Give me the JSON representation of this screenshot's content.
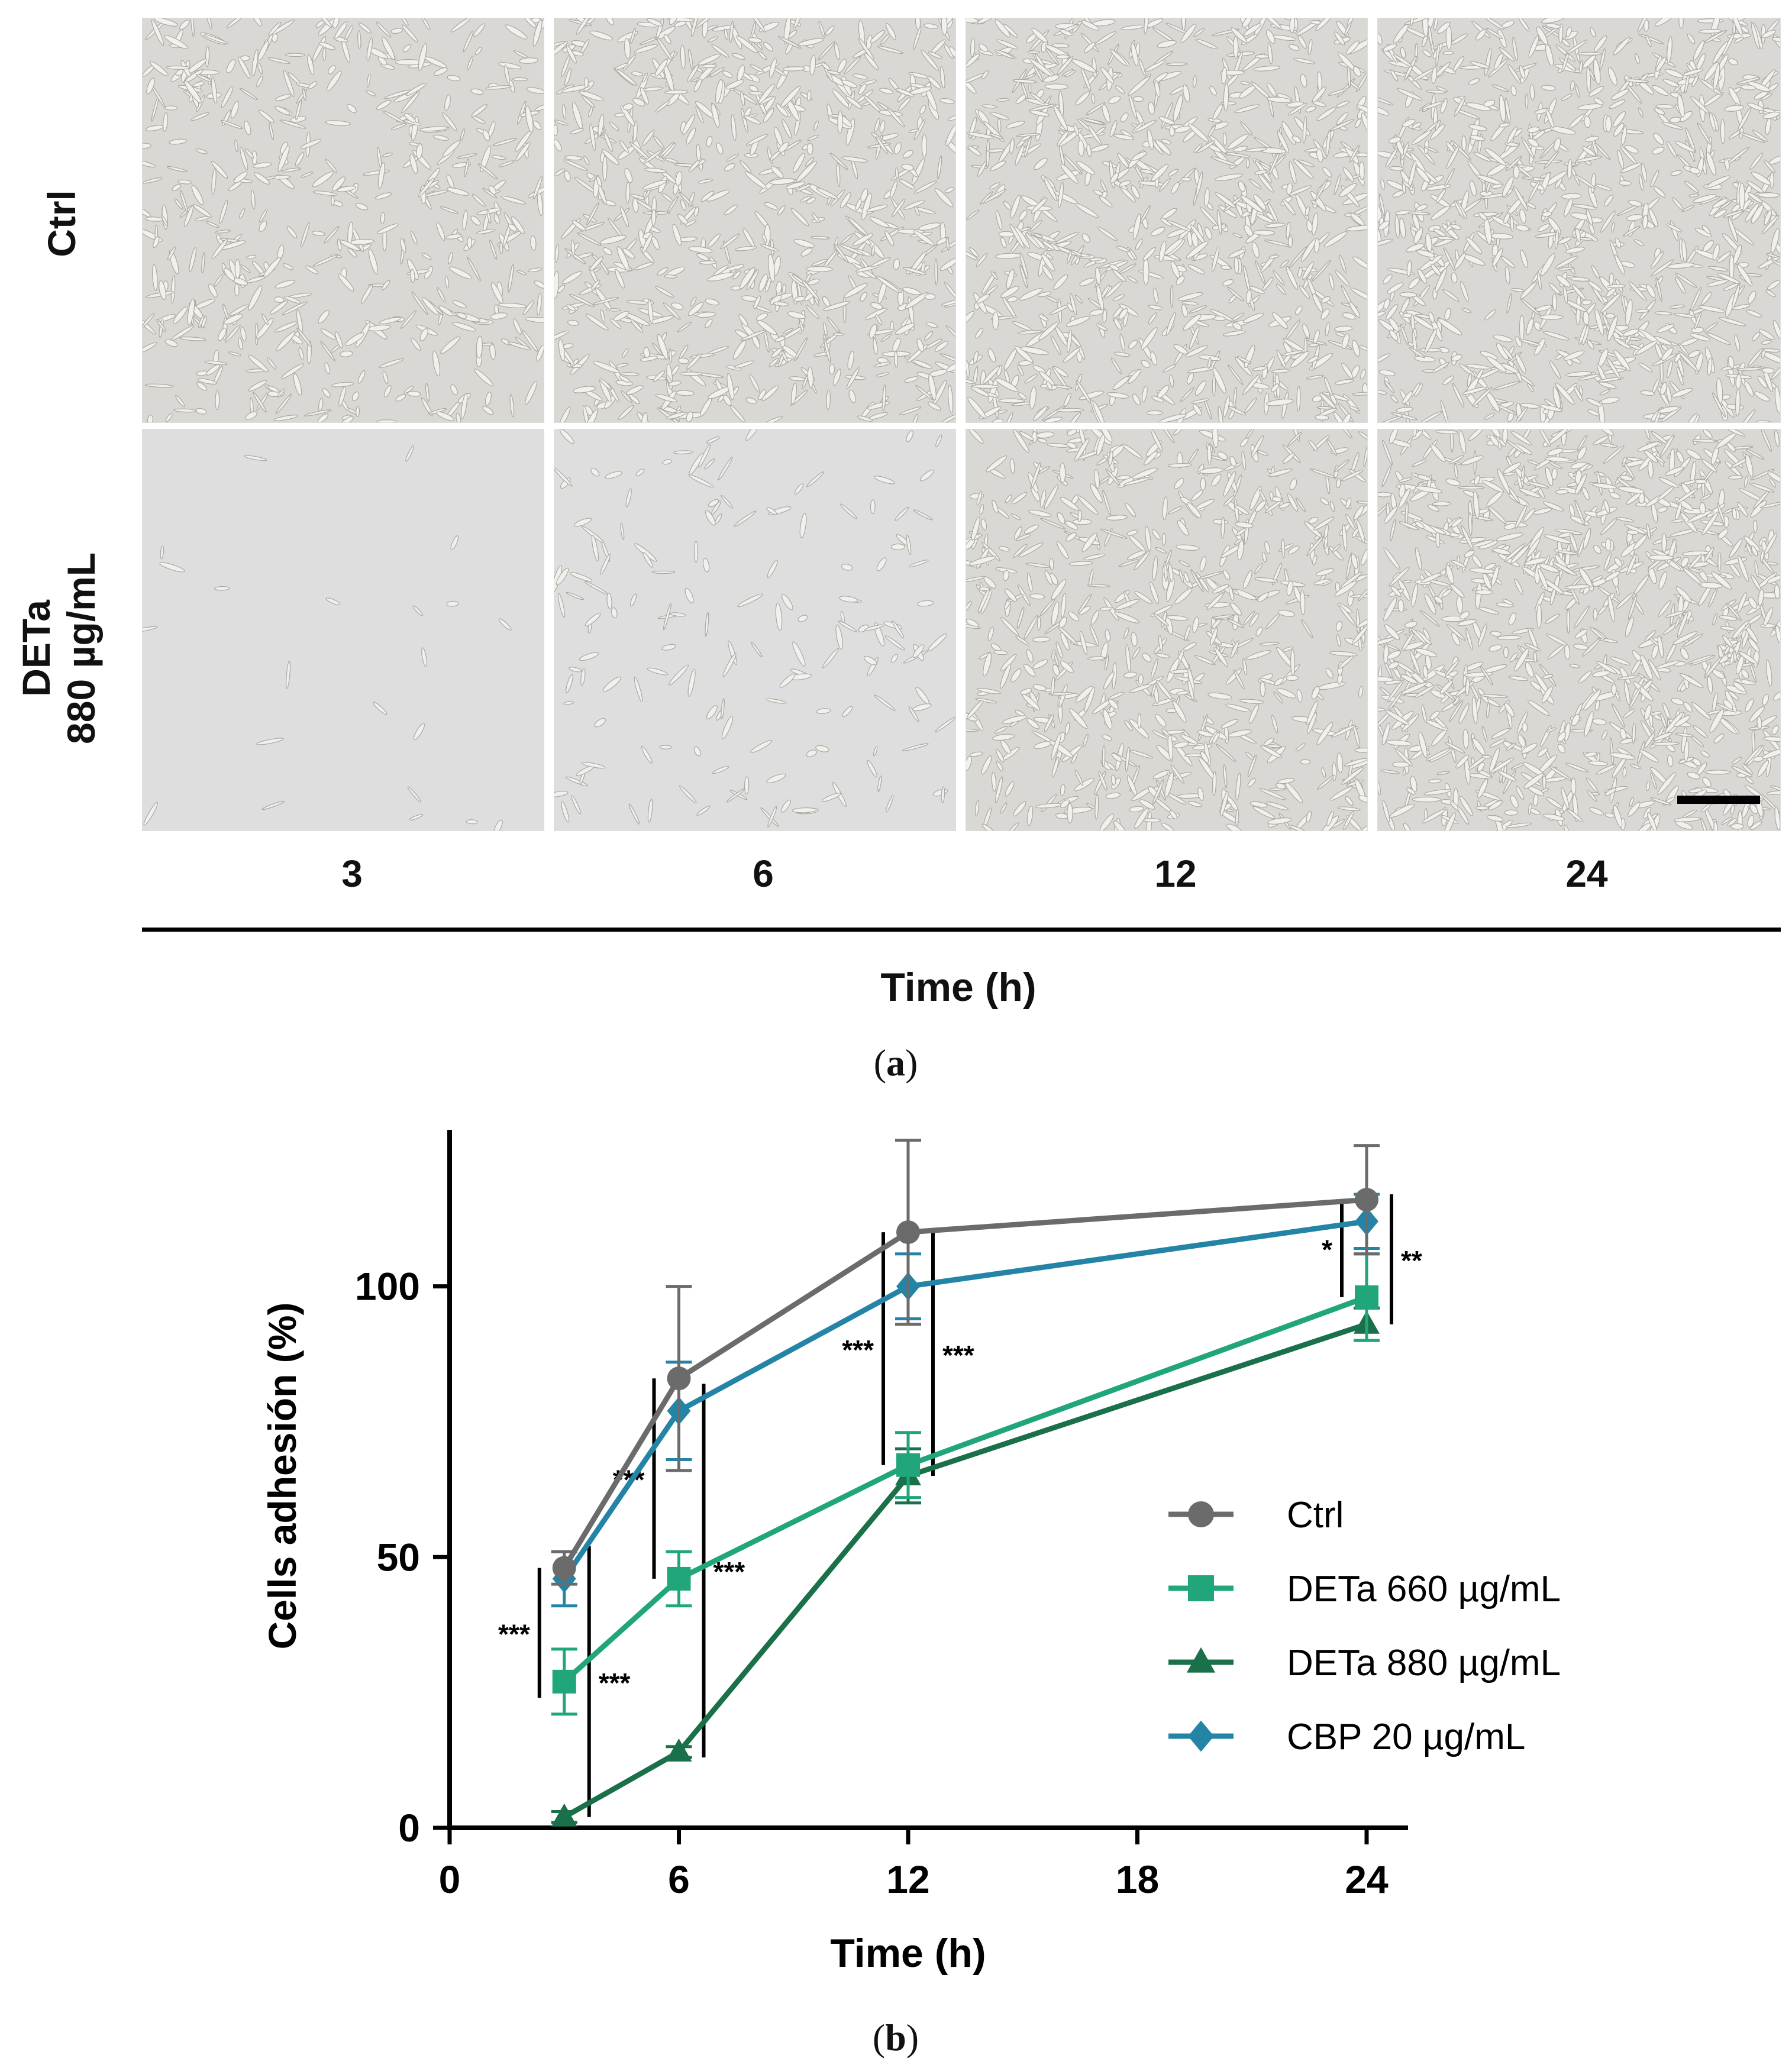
{
  "panel_a": {
    "label": "a",
    "rows": [
      {
        "line1": "Ctrl",
        "line2": ""
      },
      {
        "line1": "DETa",
        "line2": "880 µg/mL"
      }
    ],
    "columns": [
      "3",
      "6",
      "12",
      "24"
    ],
    "axis_title": "Time (h)"
  },
  "panel_b": {
    "label": "b"
  },
  "chart_data": {
    "type": "line",
    "xlabel": "Time (h)",
    "ylabel": "Cells adhesión (%)",
    "xlim": [
      0,
      24
    ],
    "ylim": [
      0,
      130
    ],
    "xticks": [
      0,
      6,
      12,
      18,
      24
    ],
    "yticks": [
      0,
      50,
      100
    ],
    "x": [
      3,
      6,
      12,
      24
    ],
    "grid": false,
    "legend_position": "right",
    "series": [
      {
        "name": "Ctrl",
        "marker": "circle",
        "color": "#6b6b6b",
        "values": [
          48,
          83,
          110,
          116
        ],
        "errors": [
          3,
          17,
          17,
          10
        ]
      },
      {
        "name": "DETa 660 µg/mL",
        "marker": "square",
        "color": "#20a67a",
        "values": [
          27,
          46,
          67,
          98
        ],
        "errors": [
          6,
          5,
          6,
          8
        ]
      },
      {
        "name": "DETa 880 µg/mL",
        "marker": "triangle",
        "color": "#1a7048",
        "values": [
          2,
          14,
          65,
          93
        ],
        "errors": [
          1,
          1,
          5,
          3
        ]
      },
      {
        "name": "CBP 20 µg/mL",
        "marker": "diamond",
        "color": "#2484a6",
        "values": [
          46,
          77,
          100,
          112
        ],
        "errors": [
          5,
          9,
          6,
          5
        ]
      }
    ],
    "annotations": [
      {
        "text": "***",
        "x": 3,
        "side": "left",
        "y_from": 24,
        "y_to": 48
      },
      {
        "text": "***",
        "x": 3,
        "side": "right",
        "y_from": 2,
        "y_to": 52
      },
      {
        "text": "***",
        "x": 6,
        "side": "left",
        "y_from": 46,
        "y_to": 83
      },
      {
        "text": "***",
        "x": 6,
        "side": "right",
        "y_from": 13,
        "y_to": 82
      },
      {
        "text": "***",
        "x": 12,
        "side": "left",
        "y_from": 67,
        "y_to": 110
      },
      {
        "text": "***",
        "x": 12,
        "side": "right",
        "y_from": 65,
        "y_to": 110
      },
      {
        "text": "*",
        "x": 24,
        "side": "left",
        "y_from": 98,
        "y_to": 116
      },
      {
        "text": "**",
        "x": 24,
        "side": "right",
        "y_from": 93,
        "y_to": 117
      }
    ]
  }
}
